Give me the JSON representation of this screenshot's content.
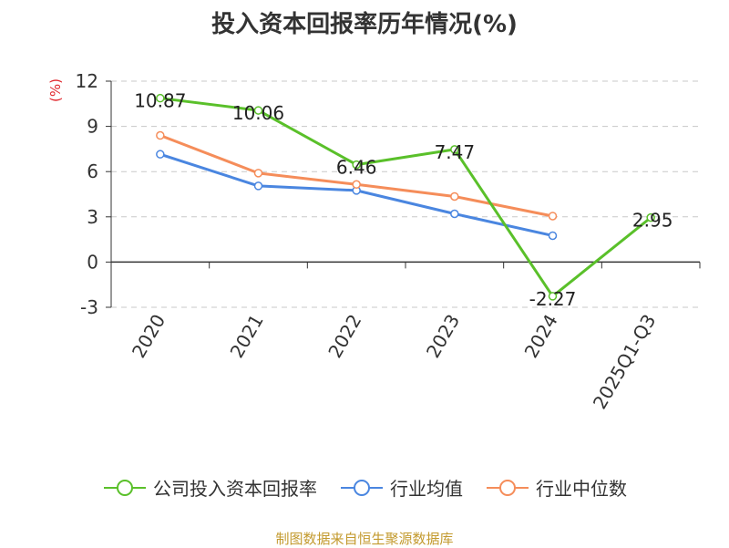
{
  "chart_data": {
    "type": "line",
    "title": "投入资本回报率历年情况(%)",
    "ylabel": "(%)",
    "categories": [
      "2020",
      "2021",
      "2022",
      "2023",
      "2024",
      "2025Q1-Q3"
    ],
    "ylim": [
      -3,
      12
    ],
    "yticks": [
      -3,
      0,
      3,
      6,
      9,
      12
    ],
    "grid": true,
    "legend_position": "bottom",
    "series": [
      {
        "name": "公司投入资本回报率",
        "color": "#5ac02a",
        "values": [
          10.87,
          10.06,
          6.46,
          7.47,
          -2.27,
          2.95
        ],
        "data_labels": [
          "10.87",
          "10.06",
          "6.46",
          "7.47",
          "-2.27",
          "2.95"
        ]
      },
      {
        "name": "行业均值",
        "color": "#4a86e0",
        "values": [
          7.15,
          5.05,
          4.75,
          3.2,
          1.75,
          null
        ]
      },
      {
        "name": "行业中位数",
        "color": "#f58d5a",
        "values": [
          8.4,
          5.9,
          5.15,
          4.35,
          3.05,
          null
        ]
      }
    ]
  },
  "source": {
    "text": "制图数据来自恒生聚源数据库",
    "color": "#c39a2e"
  },
  "unit_color": "#e0282e"
}
